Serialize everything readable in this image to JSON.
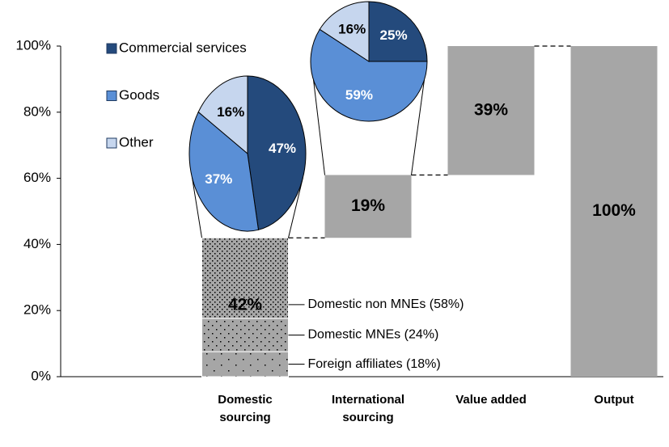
{
  "chart_data": {
    "type": "waterfall",
    "categories": [
      null,
      "Domestic sourcing",
      "International sourcing",
      "Value added",
      "Output"
    ],
    "values": [
      null,
      42,
      19,
      39,
      100
    ],
    "value_labels": [
      null,
      "42%",
      "19%",
      "39%",
      "100%"
    ],
    "color": "#a6a6a6",
    "ylim": [
      0,
      100
    ],
    "yticks": [
      {
        "value": 0,
        "label": "0%"
      },
      {
        "value": 20,
        "label": "20%"
      },
      {
        "value": 40,
        "label": "40%"
      },
      {
        "value": 60,
        "label": "60%"
      },
      {
        "value": 80,
        "label": "80%"
      },
      {
        "value": 100,
        "label": "100%"
      }
    ],
    "breakdown": {
      "labels": [
        "Foreign affiliates (18%)",
        "Domestic MNEs (24%)",
        "Domestic non MNEs (58%)"
      ],
      "values": [
        18,
        24,
        58
      ]
    },
    "pie_series": [
      {
        "name": "Commercial services",
        "color": "#244a7c"
      },
      {
        "name": "Goods",
        "color": "#5a8fd6"
      },
      {
        "name": "Other",
        "color": "#c6d6ee"
      }
    ],
    "pies": [
      {
        "values": [
          47,
          37,
          16
        ],
        "value_labels": [
          "47%",
          "37%",
          "16%"
        ]
      },
      {
        "values": [
          25,
          59,
          16
        ],
        "value_labels": [
          "25%",
          "59%",
          "16%"
        ]
      }
    ]
  }
}
